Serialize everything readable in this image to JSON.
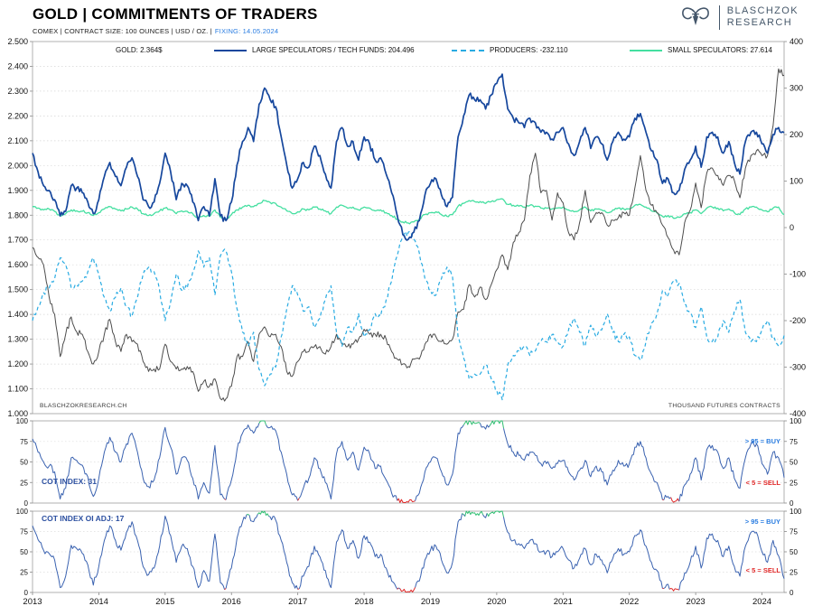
{
  "header": {
    "title": "GOLD | COMMITMENTS OF TRADERS",
    "subtitle_plain": "COMEX | CONTRACT SIZE: 100 OUNCES | USD / OZ. |",
    "subtitle_fixing": "FIXING: 14.05.2024",
    "logo_line1": "BLASCHZOK",
    "logo_line2": "RESEARCH"
  },
  "legend": {
    "gold": "GOLD: 2.364$",
    "large_speculators": "LARGE SPECULATORS / TECH FUNDS: 204.496",
    "producers": "PRODUCERS: -232.110",
    "small_speculators": "SMALL SPECULATORS: 27.614"
  },
  "watermarks": {
    "left": "BLASCHZOKRESEARCH.CH",
    "right": "THOUSAND  FUTURES  CONTRACTS"
  },
  "panels": {
    "cot_index_label": "COT INDEX: 31",
    "cot_index_oi_label": "COT INDEX OI ADJ: 17",
    "buy_label": "> 95 = BUY",
    "sell_label": "< 5 = SELL"
  },
  "colors": {
    "navy": "#16479d",
    "light_blue": "#29abe2",
    "green": "#44dfa0",
    "gold_line": "#4d4d4d",
    "cot_line": "#3a62b0",
    "buy": "#2fbf71",
    "sell": "#e02828",
    "fixing_blue": "#2a7de1",
    "label_blue": "#2b4fa0"
  },
  "chart_data": {
    "type": "line",
    "title": "GOLD | COMMITMENTS OF TRADERS",
    "x_unit": "year",
    "x_start": 2013.0,
    "x_step": 0.0833333,
    "x_ticks": [
      2013,
      2014,
      2015,
      2016,
      2017,
      2018,
      2019,
      2020,
      2021,
      2022,
      2023,
      2024
    ],
    "main": {
      "left_axis": {
        "min": 1.0,
        "max": 2.5,
        "tick_step": 0.1
      },
      "right_axis": {
        "min": -400,
        "max": 400,
        "tick_step": 100
      },
      "series": [
        {
          "name": "GOLD",
          "axis": "left",
          "color": "#4d4d4d",
          "width": 1,
          "dash": "",
          "current": 2.364,
          "values": [
            1.67,
            1.63,
            1.6,
            1.47,
            1.4,
            1.23,
            1.32,
            1.39,
            1.33,
            1.32,
            1.25,
            1.2,
            1.25,
            1.32,
            1.38,
            1.29,
            1.25,
            1.32,
            1.29,
            1.28,
            1.21,
            1.17,
            1.18,
            1.18,
            1.28,
            1.21,
            1.18,
            1.18,
            1.19,
            1.17,
            1.09,
            1.13,
            1.11,
            1.14,
            1.06,
            1.06,
            1.11,
            1.23,
            1.23,
            1.29,
            1.21,
            1.32,
            1.35,
            1.31,
            1.32,
            1.27,
            1.17,
            1.15,
            1.21,
            1.25,
            1.25,
            1.27,
            1.27,
            1.24,
            1.27,
            1.32,
            1.28,
            1.27,
            1.28,
            1.3,
            1.34,
            1.32,
            1.32,
            1.32,
            1.3,
            1.25,
            1.22,
            1.2,
            1.19,
            1.22,
            1.22,
            1.28,
            1.32,
            1.31,
            1.29,
            1.28,
            1.3,
            1.41,
            1.42,
            1.52,
            1.47,
            1.51,
            1.46,
            1.52,
            1.58,
            1.64,
            1.58,
            1.69,
            1.73,
            1.78,
            1.96,
            2.05,
            1.89,
            1.9,
            1.78,
            1.89,
            1.85,
            1.73,
            1.7,
            1.77,
            1.9,
            1.77,
            1.81,
            1.81,
            1.76,
            1.78,
            1.79,
            1.81,
            1.8,
            1.91,
            2.04,
            1.9,
            1.84,
            1.81,
            1.76,
            1.71,
            1.66,
            1.64,
            1.77,
            1.82,
            1.93,
            1.83,
            1.97,
            1.99,
            1.96,
            1.92,
            1.96,
            1.94,
            1.87,
            1.99,
            2.04,
            2.06,
            2.04,
            2.04,
            2.16,
            2.39,
            2.364
          ]
        },
        {
          "name": "LARGE SPECULATORS / TECH FUNDS",
          "axis": "right",
          "color": "#16479d",
          "width": 1.7,
          "dash": "",
          "current": 204.496,
          "values": [
            160,
            120,
            90,
            80,
            60,
            25,
            35,
            90,
            85,
            75,
            55,
            30,
            60,
            110,
            140,
            110,
            90,
            130,
            150,
            110,
            60,
            45,
            55,
            95,
            160,
            120,
            60,
            95,
            90,
            55,
            15,
            45,
            25,
            105,
            25,
            15,
            55,
            135,
            185,
            215,
            185,
            265,
            300,
            275,
            260,
            195,
            135,
            85,
            105,
            140,
            130,
            175,
            155,
            115,
            85,
            185,
            215,
            175,
            185,
            145,
            195,
            180,
            145,
            150,
            115,
            75,
            25,
            -15,
            -25,
            -10,
            15,
            70,
            95,
            105,
            70,
            45,
            65,
            195,
            240,
            285,
            275,
            275,
            255,
            285,
            310,
            330,
            255,
            235,
            225,
            215,
            235,
            225,
            205,
            205,
            190,
            205,
            215,
            180,
            155,
            185,
            215,
            170,
            195,
            180,
            145,
            185,
            205,
            190,
            195,
            235,
            245,
            205,
            165,
            145,
            95,
            105,
            75,
            80,
            125,
            145,
            175,
            130,
            195,
            205,
            195,
            160,
            185,
            140,
            115,
            185,
            205,
            205,
            180,
            160,
            200,
            215,
            204
          ]
        },
        {
          "name": "PRODUCERS",
          "axis": "right",
          "color": "#29abe2",
          "width": 1.2,
          "dash": "4 3",
          "current": -232.11,
          "values": [
            -200,
            -170,
            -140,
            -130,
            -110,
            -65,
            -80,
            -130,
            -125,
            -115,
            -95,
            -65,
            -100,
            -150,
            -180,
            -150,
            -130,
            -170,
            -190,
            -150,
            -100,
            -85,
            -95,
            -135,
            -200,
            -160,
            -100,
            -135,
            -130,
            -95,
            -50,
            -85,
            -65,
            -145,
            -60,
            -50,
            -95,
            -175,
            -225,
            -255,
            -225,
            -305,
            -340,
            -315,
            -300,
            -235,
            -175,
            -125,
            -145,
            -180,
            -170,
            -215,
            -195,
            -155,
            -125,
            -225,
            -255,
            -215,
            -225,
            -185,
            -235,
            -220,
            -185,
            -190,
            -155,
            -115,
            -60,
            -20,
            -10,
            -25,
            -55,
            -110,
            -135,
            -145,
            -110,
            -85,
            -105,
            -235,
            -280,
            -325,
            -315,
            -315,
            -295,
            -325,
            -350,
            -370,
            -295,
            -275,
            -265,
            -255,
            -275,
            -265,
            -245,
            -245,
            -230,
            -245,
            -255,
            -220,
            -195,
            -225,
            -255,
            -210,
            -235,
            -220,
            -185,
            -225,
            -245,
            -230,
            -235,
            -275,
            -285,
            -245,
            -205,
            -185,
            -135,
            -145,
            -115,
            -120,
            -165,
            -185,
            -215,
            -170,
            -235,
            -245,
            -235,
            -200,
            -225,
            -180,
            -155,
            -225,
            -245,
            -245,
            -220,
            -200,
            -240,
            -255,
            -232
          ]
        },
        {
          "name": "SMALL SPECULATORS",
          "axis": "right",
          "color": "#44dfa0",
          "width": 1.3,
          "dash": "",
          "current": 27.614,
          "values": [
            45,
            42,
            38,
            40,
            35,
            25,
            30,
            38,
            36,
            35,
            32,
            26,
            32,
            40,
            45,
            40,
            36,
            40,
            44,
            40,
            30,
            26,
            30,
            36,
            42,
            38,
            30,
            36,
            35,
            30,
            20,
            26,
            24,
            38,
            22,
            18,
            28,
            38,
            44,
            48,
            45,
            52,
            58,
            54,
            52,
            44,
            36,
            30,
            34,
            40,
            38,
            44,
            40,
            36,
            30,
            44,
            48,
            42,
            44,
            38,
            44,
            42,
            36,
            38,
            32,
            26,
            18,
            12,
            10,
            12,
            18,
            28,
            32,
            34,
            28,
            24,
            28,
            46,
            52,
            58,
            56,
            56,
            52,
            56,
            60,
            62,
            50,
            48,
            46,
            44,
            48,
            46,
            42,
            42,
            40,
            42,
            44,
            38,
            34,
            38,
            44,
            36,
            40,
            38,
            32,
            38,
            42,
            40,
            40,
            48,
            50,
            44,
            36,
            32,
            24,
            26,
            20,
            22,
            30,
            32,
            38,
            30,
            42,
            44,
            42,
            36,
            40,
            32,
            28,
            40,
            44,
            44,
            38,
            34,
            42,
            44,
            28
          ]
        }
      ]
    },
    "cot_panels": [
      {
        "name": "COT INDEX",
        "current": 31,
        "buy_threshold": 95,
        "sell_threshold": 5,
        "axis": {
          "min": 0,
          "max": 100,
          "ticks": [
            0,
            25,
            50,
            75,
            100
          ]
        },
        "values": [
          78,
          62,
          50,
          45,
          38,
          5,
          18,
          55,
          52,
          46,
          32,
          8,
          30,
          62,
          80,
          62,
          50,
          72,
          85,
          62,
          30,
          20,
          28,
          55,
          92,
          68,
          35,
          55,
          52,
          30,
          5,
          25,
          12,
          70,
          10,
          4,
          28,
          65,
          85,
          95,
          85,
          97,
          100,
          92,
          88,
          62,
          35,
          10,
          3,
          18,
          30,
          55,
          42,
          25,
          5,
          60,
          75,
          52,
          62,
          40,
          68,
          60,
          42,
          45,
          28,
          12,
          3,
          1,
          1,
          2,
          12,
          38,
          50,
          55,
          38,
          22,
          35,
          85,
          95,
          100,
          97,
          97,
          90,
          97,
          100,
          100,
          72,
          62,
          58,
          52,
          62,
          58,
          48,
          48,
          42,
          48,
          52,
          38,
          28,
          40,
          52,
          32,
          45,
          38,
          22,
          40,
          52,
          45,
          48,
          68,
          75,
          55,
          35,
          25,
          4,
          8,
          1,
          2,
          22,
          35,
          55,
          28,
          65,
          70,
          62,
          42,
          55,
          30,
          18,
          55,
          72,
          72,
          48,
          35,
          62,
          55,
          31
        ]
      },
      {
        "name": "COT INDEX OI ADJ",
        "current": 17,
        "buy_threshold": 95,
        "sell_threshold": 5,
        "axis": {
          "min": 0,
          "max": 100,
          "ticks": [
            0,
            25,
            50,
            75,
            100
          ]
        },
        "values": [
          82,
          65,
          52,
          48,
          40,
          6,
          20,
          58,
          54,
          48,
          34,
          9,
          32,
          64,
          82,
          64,
          52,
          74,
          87,
          64,
          32,
          22,
          30,
          57,
          94,
          70,
          37,
          57,
          54,
          32,
          6,
          27,
          14,
          72,
          12,
          5,
          30,
          67,
          87,
          96,
          87,
          98,
          100,
          93,
          89,
          64,
          37,
          12,
          4,
          20,
          32,
          57,
          44,
          27,
          6,
          62,
          77,
          54,
          64,
          42,
          70,
          62,
          44,
          47,
          30,
          14,
          4,
          2,
          1,
          3,
          14,
          40,
          52,
          57,
          40,
          24,
          37,
          87,
          96,
          100,
          98,
          98,
          92,
          98,
          100,
          100,
          74,
          64,
          60,
          54,
          64,
          60,
          50,
          50,
          44,
          50,
          54,
          40,
          30,
          42,
          54,
          34,
          47,
          40,
          24,
          42,
          54,
          47,
          50,
          70,
          77,
          57,
          37,
          27,
          5,
          10,
          2,
          3,
          24,
          37,
          57,
          30,
          67,
          72,
          64,
          44,
          57,
          32,
          20,
          57,
          74,
          74,
          50,
          37,
          64,
          45,
          17
        ]
      }
    ]
  }
}
